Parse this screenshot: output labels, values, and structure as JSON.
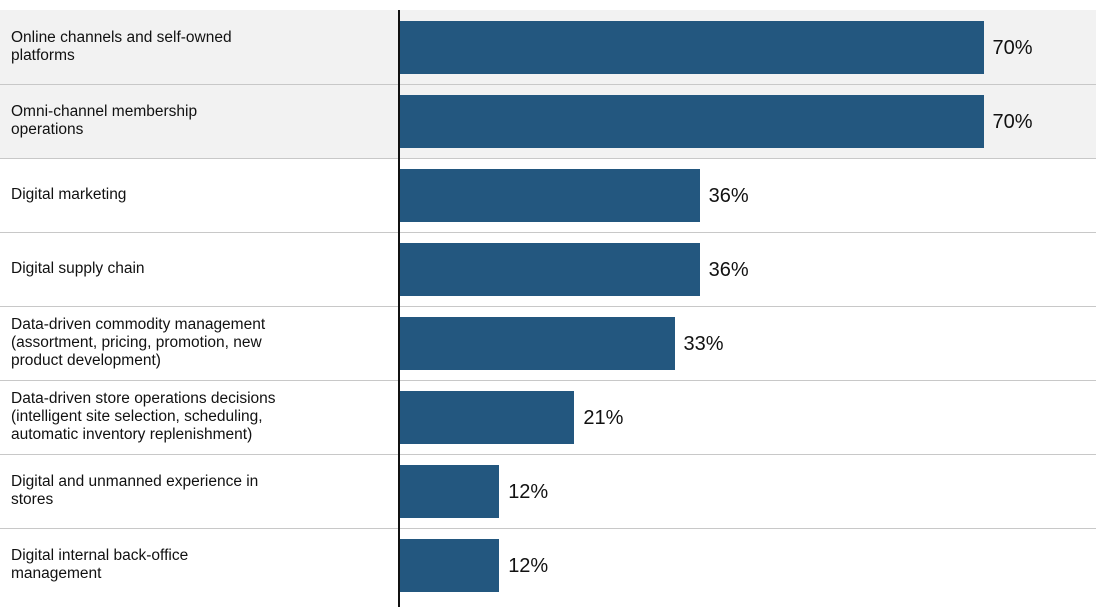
{
  "chart_data": {
    "type": "bar",
    "orientation": "horizontal",
    "categories": [
      "Online channels and self-owned platforms",
      "Omni-channel membership operations",
      "Digital marketing",
      "Digital supply chain",
      "Data-driven commodity management (assortment, pricing, promotion, new product development)",
      "Data-driven store operations decisions (intelligent site selection, scheduling, automatic inventory replenishment)",
      "Digital and unmanned experience in stores",
      "Digital internal back-office management"
    ],
    "values": [
      70,
      70,
      36,
      36,
      33,
      21,
      12,
      12
    ],
    "value_labels": [
      "70%",
      "70%",
      "36%",
      "36%",
      "33%",
      "21%",
      "12%",
      "12%"
    ],
    "highlighted_categories": [
      0,
      1
    ],
    "xlim": [
      0,
      100
    ],
    "grid": false,
    "colors": {
      "bar": "#23577f",
      "highlight_background": "#f2f2f2",
      "separator": "#c8c8c8",
      "axis": "#111111"
    }
  }
}
